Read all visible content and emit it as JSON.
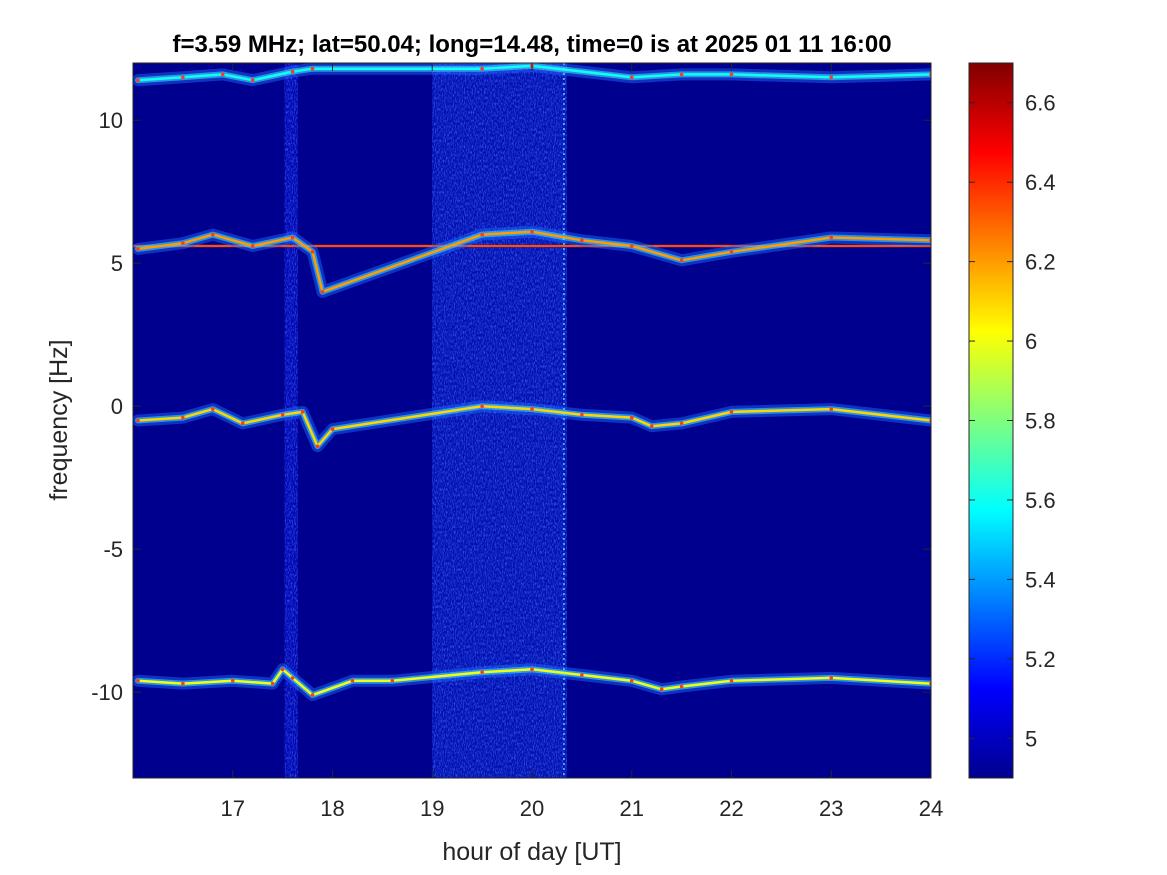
{
  "chart_data": {
    "type": "heatmap",
    "title": "f=3.59 MHz;  lat=50.04; long=14.48, time=0 is at 2025 01 11 16:00",
    "xlabel": "hour of day [UT]",
    "ylabel": "frequency [Hz]",
    "xlim": [
      16.0,
      24.0
    ],
    "ylim": [
      -13.0,
      12.0
    ],
    "xticks": [
      17,
      18,
      19,
      20,
      21,
      22,
      23,
      24
    ],
    "yticks": [
      -10,
      -5,
      0,
      5,
      10
    ],
    "colormap": "jet",
    "background_color": "#00008f",
    "colorbar": {
      "range": [
        4.9,
        6.7
      ],
      "ticks": [
        5,
        5.2,
        5.4,
        5.6,
        5.8,
        6,
        6.2,
        6.4,
        6.6
      ]
    },
    "traces": [
      {
        "name": "carrier line",
        "y": 5.6,
        "x_range": [
          16.0,
          24.0
        ],
        "intensity": 6.6
      },
      {
        "name": "upper Doppler trace",
        "points": [
          [
            16.05,
            11.4
          ],
          [
            16.5,
            11.5
          ],
          [
            16.9,
            11.6
          ],
          [
            17.2,
            11.4
          ],
          [
            17.6,
            11.7
          ],
          [
            17.8,
            11.8
          ],
          [
            19.5,
            11.8
          ],
          [
            20.0,
            11.9
          ],
          [
            21.0,
            11.5
          ],
          [
            21.5,
            11.6
          ],
          [
            22.0,
            11.6
          ],
          [
            23.0,
            11.5
          ],
          [
            24.0,
            11.6
          ]
        ],
        "intensity": 5.6
      },
      {
        "name": "positive Doppler trace",
        "points": [
          [
            16.05,
            5.5
          ],
          [
            16.5,
            5.7
          ],
          [
            16.8,
            6.0
          ],
          [
            17.2,
            5.6
          ],
          [
            17.6,
            5.9
          ],
          [
            17.8,
            5.4
          ],
          [
            17.9,
            4.0
          ],
          [
            19.5,
            6.0
          ],
          [
            20.0,
            6.1
          ],
          [
            20.5,
            5.8
          ],
          [
            21.0,
            5.6
          ],
          [
            21.5,
            5.1
          ],
          [
            22.0,
            5.4
          ],
          [
            23.0,
            5.9
          ],
          [
            24.0,
            5.8
          ]
        ],
        "intensity": 6.2
      },
      {
        "name": "zero Doppler trace",
        "points": [
          [
            16.05,
            -0.5
          ],
          [
            16.5,
            -0.4
          ],
          [
            16.8,
            -0.1
          ],
          [
            17.1,
            -0.6
          ],
          [
            17.5,
            -0.3
          ],
          [
            17.7,
            -0.2
          ],
          [
            17.85,
            -1.4
          ],
          [
            18.0,
            -0.8
          ],
          [
            19.5,
            0.0
          ],
          [
            20.0,
            -0.1
          ],
          [
            20.5,
            -0.3
          ],
          [
            21.0,
            -0.4
          ],
          [
            21.2,
            -0.7
          ],
          [
            21.5,
            -0.6
          ],
          [
            22.0,
            -0.2
          ],
          [
            23.0,
            -0.1
          ],
          [
            24.0,
            -0.5
          ]
        ],
        "intensity": 6.1
      },
      {
        "name": "negative Doppler trace",
        "points": [
          [
            16.05,
            -9.6
          ],
          [
            16.5,
            -9.7
          ],
          [
            17.0,
            -9.6
          ],
          [
            17.4,
            -9.7
          ],
          [
            17.5,
            -9.2
          ],
          [
            17.6,
            -9.5
          ],
          [
            17.8,
            -10.1
          ],
          [
            18.2,
            -9.6
          ],
          [
            18.6,
            -9.6
          ],
          [
            19.5,
            -9.3
          ],
          [
            20.0,
            -9.2
          ],
          [
            20.5,
            -9.4
          ],
          [
            21.0,
            -9.6
          ],
          [
            21.3,
            -9.9
          ],
          [
            21.5,
            -9.8
          ],
          [
            22.0,
            -9.6
          ],
          [
            23.0,
            -9.5
          ],
          [
            24.0,
            -9.7
          ]
        ],
        "intensity": 6.0
      }
    ],
    "noise_bands": [
      {
        "x_range": [
          17.52,
          17.65
        ],
        "level": 5.15
      },
      {
        "x_range": [
          19.0,
          20.35
        ],
        "level": 5.2
      }
    ],
    "vertical_lines": [
      20.32
    ]
  }
}
